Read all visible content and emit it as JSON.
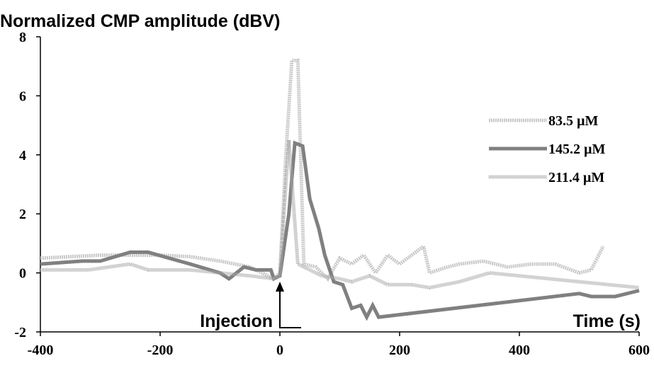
{
  "chart_data": {
    "type": "line",
    "title": "Normalized CMP amplitude (dBV)",
    "annotations": [
      "Injection",
      "Time (s)"
    ],
    "xlim": [
      -400,
      600
    ],
    "xticks": [
      -400,
      -200,
      0,
      200,
      400,
      600
    ],
    "ylim": [
      -2,
      8
    ],
    "yticks": [
      -2,
      0,
      2,
      4,
      6,
      8
    ],
    "legend": "right",
    "series": [
      {
        "name": "83.5 µM",
        "color": "#c8c8c8",
        "x": [
          -400,
          -300,
          -200,
          -150,
          -100,
          -50,
          -10,
          0,
          10,
          20,
          30,
          40,
          60,
          80,
          100,
          120,
          140,
          160,
          180,
          200,
          220,
          240,
          250,
          280,
          300,
          340,
          380,
          420,
          460,
          500,
          520,
          540
        ],
        "values": [
          0.5,
          0.6,
          0.6,
          0.55,
          0.4,
          0.2,
          -0.2,
          0,
          4,
          7.2,
          7.2,
          0.3,
          0.2,
          -0.2,
          0.5,
          0.3,
          0.6,
          0,
          0.6,
          0.3,
          0.6,
          0.9,
          0,
          0.2,
          0.3,
          0.4,
          0.2,
          0.3,
          0.3,
          0,
          0.1,
          0.9
        ]
      },
      {
        "name": "145.2 µM",
        "color": "#808080",
        "x": [
          -400,
          -330,
          -300,
          -250,
          -220,
          -150,
          -100,
          -85,
          -60,
          -40,
          -15,
          -10,
          0,
          15,
          25,
          38,
          50,
          65,
          75,
          90,
          105,
          120,
          135,
          145,
          155,
          165,
          500,
          520,
          560,
          600
        ],
        "values": [
          0.3,
          0.4,
          0.4,
          0.7,
          0.7,
          0.3,
          0,
          -0.2,
          0.2,
          0.1,
          0.1,
          -0.2,
          -0.1,
          2,
          4.4,
          4.3,
          2.5,
          1.5,
          0.6,
          -0.3,
          -0.4,
          -1.2,
          -1.1,
          -1.5,
          -1.1,
          -1.5,
          -0.7,
          -0.8,
          -0.8,
          -0.6
        ]
      },
      {
        "name": "211.4 µM",
        "color": "#a6a6a6",
        "x": [
          -400,
          -320,
          -250,
          -220,
          -150,
          -100,
          -50,
          -10,
          0,
          10,
          15,
          30,
          50,
          70,
          100,
          120,
          150,
          180,
          220,
          250,
          300,
          350,
          400,
          500,
          600
        ],
        "values": [
          0.1,
          0.1,
          0.3,
          0.1,
          0.1,
          0,
          -0.1,
          -0.2,
          -0.1,
          3,
          4.5,
          0.3,
          0.1,
          -0.1,
          -0.2,
          -0.3,
          -0.1,
          -0.4,
          -0.4,
          -0.5,
          -0.3,
          0,
          -0.1,
          -0.3,
          -0.5
        ]
      }
    ]
  }
}
